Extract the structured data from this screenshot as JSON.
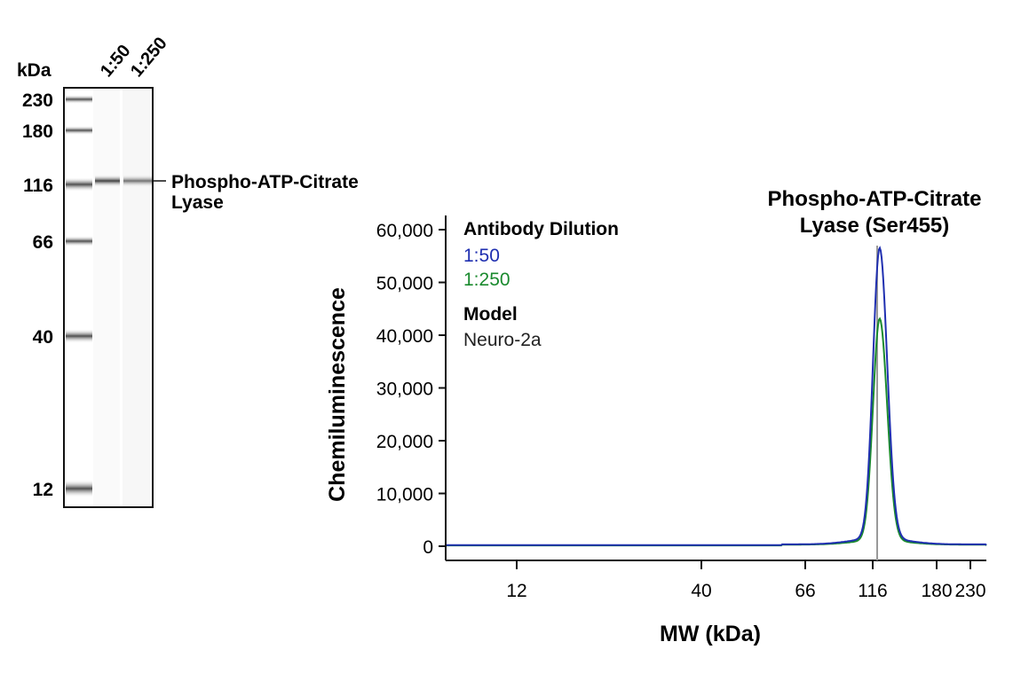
{
  "blot": {
    "unit_label": "kDa",
    "lane_labels": [
      "1:50",
      "1:250"
    ],
    "markers": [
      "230",
      "180",
      "116",
      "66",
      "40",
      "12"
    ],
    "band_label_line1": "Phospho-ATP-Citrate",
    "band_label_line2": "Lyase",
    "band_kda": 116,
    "band_intensity": [
      0.75,
      0.55
    ]
  },
  "chart_data": {
    "type": "line",
    "title_line1": "Phospho-ATP-Citrate",
    "title_line2": "Lyase (Ser455)",
    "xlabel": "MW (kDa)",
    "ylabel": "Chemiluminescence",
    "x_ticks": [
      "12",
      "40",
      "66",
      "116",
      "180",
      "230"
    ],
    "y_ticks": [
      "0",
      "10,000",
      "20,000",
      "30,000",
      "40,000",
      "50,000",
      "60,000"
    ],
    "ylim": [
      0,
      60000
    ],
    "x_scale": "log",
    "grid": false,
    "marker_line_kda": 116,
    "legend": {
      "heading": "Antibody Dilution",
      "model_heading": "Model",
      "model": "Neuro-2a",
      "placement": "top-left"
    },
    "series": [
      {
        "name": "1:50",
        "color": "#1f2fb0",
        "peak_kda": 118,
        "peak_value": 55000,
        "baseline": 200
      },
      {
        "name": "1:250",
        "color": "#1a8a2e",
        "peak_kda": 118,
        "peak_value": 42000,
        "baseline": 150
      }
    ]
  }
}
